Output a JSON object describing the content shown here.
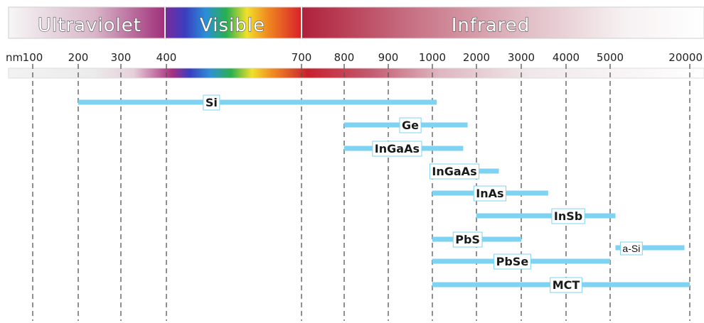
{
  "chart_data": {
    "type": "bar",
    "bands": [
      {
        "name": "Ultraviolet"
      },
      {
        "name": "Visible"
      },
      {
        "name": "Infrared"
      }
    ],
    "axis_unit": "nm",
    "ticks": [
      100,
      200,
      300,
      400,
      700,
      800,
      900,
      1000,
      2000,
      3000,
      4000,
      5000,
      20000
    ],
    "series": [
      {
        "name": "Si",
        "start": 200,
        "end": 1100,
        "label_at": 500
      },
      {
        "name": "Ge",
        "start": 800,
        "end": 1800,
        "label_at": 950
      },
      {
        "name": "InGaAs",
        "start": 800,
        "end": 1700,
        "label_at": 920
      },
      {
        "name": "InGaAs",
        "start": 1050,
        "end": 2500,
        "label_at": 1500
      },
      {
        "name": "InAs",
        "start": 1000,
        "end": 3600,
        "label_at": 2300
      },
      {
        "name": "InSb",
        "start": 2000,
        "end": 6000,
        "label_at": 4050
      },
      {
        "name": "PbS",
        "start": 1000,
        "end": 3000,
        "label_at": 1800
      },
      {
        "name": "a-Si",
        "start": 6000,
        "end": 19000,
        "label_at": 9000
      },
      {
        "name": "PbSe",
        "start": 1000,
        "end": 5000,
        "label_at": 2800
      },
      {
        "name": "MCT",
        "start": 1000,
        "end": 20000,
        "label_at": 4000
      }
    ],
    "colors": {
      "bar": "#7fd3f2",
      "gridline": "#555555",
      "label_border": "#7fd3f2"
    }
  }
}
